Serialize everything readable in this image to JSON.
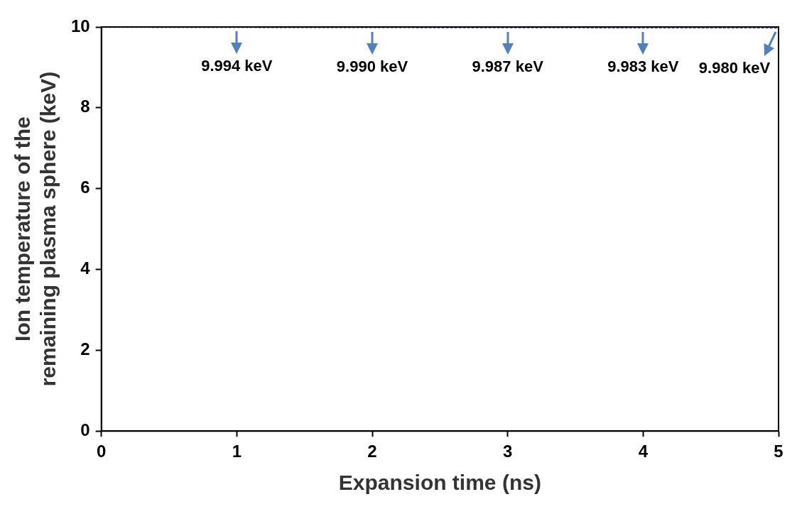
{
  "chart_data": {
    "type": "line",
    "xlabel": "Expansion time (ns)",
    "ylabel": "Ion temperature of the remaining plasma sphere (keV)",
    "x": [
      0,
      1,
      2,
      3,
      4,
      5
    ],
    "series": [
      {
        "color": "#5b5bb5",
        "values": [
          10,
          9.994,
          9.99,
          9.987,
          9.983,
          9.98
        ],
        "value_labels": [
          null,
          "9.994 keV",
          "9.990 keV",
          "9.987 keV",
          "9.983 keV",
          "9.980 keV"
        ]
      }
    ],
    "xlim": [
      0,
      5
    ],
    "xticks": [
      0,
      1,
      2,
      3,
      4,
      5
    ],
    "ylim": [
      0,
      10
    ],
    "yticks": [
      0,
      2,
      4,
      6,
      8,
      10
    ],
    "grid": false,
    "legend": false,
    "marker": "none",
    "line_style": "dotted"
  }
}
